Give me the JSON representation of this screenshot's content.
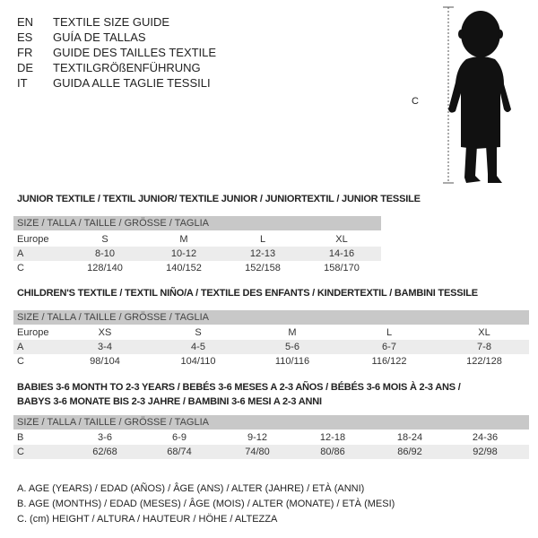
{
  "languages": [
    {
      "code": "EN",
      "text": "TEXTILE SIZE GUIDE"
    },
    {
      "code": "ES",
      "text": "GUÍA DE TALLAS"
    },
    {
      "code": "FR",
      "text": "GUIDE DES TAILLES TEXTILE"
    },
    {
      "code": "DE",
      "text": "TEXTILGRÖßENFÜHRUNG"
    },
    {
      "code": "IT",
      "text": "GUIDA ALLE TAGLIE TESSILI"
    }
  ],
  "figure": {
    "measure_label": "C"
  },
  "junior": {
    "title": "JUNIOR TEXTILE / TEXTIL JUNIOR/ TEXTILE JUNIOR / JUNIORTEXTIL / JUNIOR TESSILE",
    "header": "SIZE / TALLA / TAILLE / GRÖSSE / TAGLIA",
    "rows": [
      {
        "label": "Europe",
        "values": [
          "S",
          "M",
          "L",
          "XL"
        ]
      },
      {
        "label": "A",
        "values": [
          "8-10",
          "10-12",
          "12-13",
          "14-16"
        ]
      },
      {
        "label": "C",
        "values": [
          "128/140",
          "140/152",
          "152/158",
          "158/170"
        ]
      }
    ]
  },
  "children": {
    "title": "CHILDREN'S TEXTILE / TEXTIL NIÑO/A / TEXTILE DES ENFANTS / KINDERTEXTIL / BAMBINI TESSILE",
    "header": "SIZE / TALLA / TAILLE / GRÖSSE / TAGLIA",
    "rows": [
      {
        "label": "Europe",
        "values": [
          "XS",
          "S",
          "M",
          "L",
          "XL"
        ]
      },
      {
        "label": "A",
        "values": [
          "3-4",
          "4-5",
          "5-6",
          "6-7",
          "7-8"
        ]
      },
      {
        "label": "C",
        "values": [
          "98/104",
          "104/110",
          "110/116",
          "116/122",
          "122/128"
        ]
      }
    ]
  },
  "babies": {
    "title_line1": "BABIES 3-6 MONTH TO 2-3 YEARS / BEBÉS 3-6 MESES A 2-3 AÑOS / BÉBÉS 3-6 MOIS À 2-3 ANS /",
    "title_line2": "BABYS 3-6 MONATE BIS 2-3 JAHRE / BAMBINI 3-6 MESI A 2-3 ANNI",
    "header": "SIZE / TALLA / TAILLE / GRÖSSE / TAGLIA",
    "rows": [
      {
        "label": "B",
        "values": [
          "3-6",
          "6-9",
          "9-12",
          "12-18",
          "18-24",
          "24-36"
        ]
      },
      {
        "label": "C",
        "values": [
          "62/68",
          "68/74",
          "74/80",
          "80/86",
          "86/92",
          "92/98"
        ]
      }
    ]
  },
  "legend": [
    "A. AGE (YEARS) / EDAD (AÑOS) / ÂGE (ANS) / ALTER (JAHRE) / ETÀ (ANNI)",
    "B. AGE (MONTHS) / EDAD (MESES) / ÂGE (MOIS) / ALTER (MONATE) / ETÀ (MESI)",
    "C. (cm) HEIGHT / ALTURA / HAUTEUR / HÖHE / ALTEZZA"
  ]
}
